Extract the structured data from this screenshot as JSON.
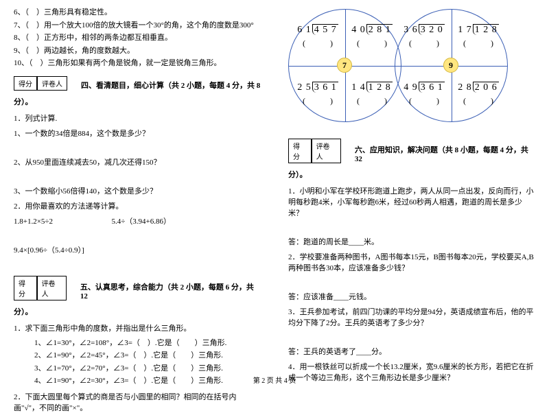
{
  "leftCol": {
    "judgments": [
      "6、（　）三角形具有稳定性。",
      "7、（　）用一个放大100倍的放大镜看一个30°的角，这个角的度数是300°",
      "8、（　）正方形中，相邻的两条边都互相垂直。",
      "9、（　）两边越长，角的度数越大。",
      "10、（　）三角形如果有两个角是锐角，就一定是锐角三角形。"
    ],
    "scoreLabels": {
      "score": "得分",
      "reviewer": "评卷人"
    },
    "section4Title": "四、看清题目，细心计算（共 2 小题，每题 4 分，共 8",
    "section4Cont": "分）。",
    "q1": "1．列式计算.",
    "q1a": "1、一个数的34倍是884，这个数是多少？",
    "q1b": "2、从950里面连续减去50，减几次还得150？",
    "q1c": "3、一个数缩小56倍得140，这个数是多少？",
    "q2": "2．用你最喜欢的方法递等计算。",
    "q2a": "1.8+1.2×5÷2",
    "q2b": "5.4÷（3.94+6.86）",
    "q2c": "9.4×[0.96÷（5.4÷0.9）]",
    "section5Title": "五、认真思考，综合能力（共 2 小题，每题 6 分，共 12",
    "section5Cont": "分）。",
    "q5_1": "1．求下面三角形中角的度数，并指出是什么三角形。",
    "q5_1a": "1、∠1=30°，∠2=108°，∠3=（　）.它是（　　）三角形.",
    "q5_1b": "2、∠1=90°，∠2=45°，∠3=（　）.它是（　　）三角形.",
    "q5_1c": "3、∠1=70°，∠2=70°，∠3=（　）.它是（　　）三角形.",
    "q5_1d": "4、∠1=90°，∠2=30°，∠3=（　）.它是（　　）三角形.",
    "q5_2": "2．下面大圆里每个算式的商是否与小圆里的相同？相同的在括号内画\"√\"，不同的画\"×\"。"
  },
  "rightCol": {
    "circles": {
      "center1": "7",
      "center2": "9",
      "c1": {
        "tl": "6 1 ) 4 5 7",
        "tr": "4 0 ) 2 8 1",
        "bl": "2 5 ) 3 6 1",
        "br": "1 4 ) 1 2 8"
      },
      "c2": {
        "tl": "3 6 ) 3 2 0",
        "tr": "1 7 ) 1 2 8",
        "bl": "4 9 ) 3 6 1",
        "br": "2 8 ) 2 0 6"
      },
      "paren": "(　　　)"
    },
    "scoreLabels": {
      "score": "得分",
      "reviewer": "评卷人"
    },
    "section6Title": "六、应用知识，解决问题（共 8 小题，每题 4 分，共 32",
    "section6Cont": "分）。",
    "q6_1": "1．小明和小军在学校环形跑道上跑步，两人从同一点出发，反向而行，小明每秒跑4米，小军每秒跑6米，经过60秒两人相遇，跑道的周长是多少米？",
    "a6_1": "答：跑道的周长是____米。",
    "q6_2": "2．学校要准备两种图书，A图书每本15元，B图书每本20元，学校要买A,B两种图书各30本，应该准备多少钱？",
    "a6_2": "答：应该准备____元钱。",
    "q6_3": "3．王兵参加考试，前四门功课的平均分是94分，英语成绩宣布后，他的平均分下降了2分。王兵的英语考了多少分？",
    "a6_3": "答：王兵的英语考了____分。",
    "q6_4": "4．用一根铁丝可以折成一个长13.2厘米，宽9.6厘米的长方形，若把它在折成一个等边三角形，这个三角形边长是多少厘米？"
  },
  "footer": "第 2 页 共 4 页"
}
